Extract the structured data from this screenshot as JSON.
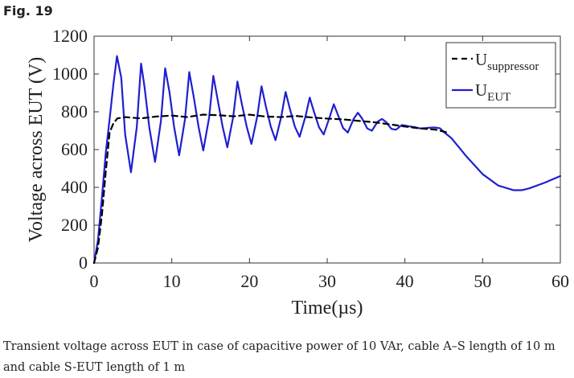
{
  "figure_label": "Fig. 19",
  "caption_line1": "Transient voltage across EUT in case of capacitive power of 10 VAr, cable A–S length of 10 m",
  "caption_line2": "and cable S-EUT length of 1 m",
  "chart_data": {
    "type": "line",
    "xlabel": "Time(µs)",
    "ylabel": "Voltage across EUT (V)",
    "xlim": [
      0,
      60
    ],
    "ylim": [
      0,
      1200
    ],
    "xticks": [
      0,
      10,
      20,
      30,
      40,
      50,
      60
    ],
    "yticks": [
      0,
      200,
      400,
      600,
      800,
      1000,
      1200
    ],
    "grid": false,
    "legend_position": "top-right",
    "series": [
      {
        "name": "U_suppressor",
        "legend_main": "U",
        "legend_sub": "suppressor",
        "style": "dashed",
        "color": "#000000",
        "x": [
          0,
          0.5,
          1,
          1.5,
          2,
          2.5,
          3,
          4,
          6,
          8,
          10,
          12,
          14,
          16,
          18,
          20,
          22,
          24,
          26,
          28,
          30,
          32,
          34,
          36,
          38,
          40,
          42,
          44,
          45.5
        ],
        "y": [
          0,
          80,
          250,
          480,
          690,
          740,
          765,
          772,
          765,
          775,
          780,
          772,
          785,
          782,
          776,
          785,
          775,
          772,
          778,
          770,
          764,
          760,
          752,
          745,
          734,
          722,
          712,
          705,
          690
        ]
      },
      {
        "name": "U_EUT",
        "legend_main": "U",
        "legend_sub": "EUT",
        "style": "solid",
        "color": "#1f1fcf",
        "x": [
          0,
          0.5,
          1,
          1.5,
          2,
          2.5,
          2.95,
          3.5,
          4.0,
          4.75,
          5.5,
          6.05,
          6.5,
          7.1,
          7.85,
          8.6,
          9.15,
          9.7,
          10.3,
          10.95,
          11.7,
          12.25,
          12.8,
          13.45,
          14.05,
          14.8,
          15.35,
          15.9,
          16.55,
          17.15,
          17.9,
          18.45,
          19.0,
          19.65,
          20.25,
          21.0,
          21.55,
          22.1,
          22.75,
          23.35,
          24.1,
          24.65,
          25.2,
          25.85,
          26.45,
          27.2,
          27.75,
          28.3,
          28.95,
          29.55,
          30.3,
          30.85,
          31.4,
          32.05,
          32.65,
          33.4,
          33.95,
          34.5,
          35.15,
          35.75,
          36.5,
          37.05,
          37.6,
          38.25,
          38.85,
          39.6,
          40.15,
          40.7,
          41.35,
          41.95,
          42.7,
          43.25,
          43.8,
          44.5,
          45.1,
          46,
          48,
          50,
          52,
          54,
          55,
          56,
          58,
          60
        ],
        "y": [
          0,
          120,
          340,
          580,
          760,
          950,
          1095,
          980,
          680,
          480,
          720,
          1055,
          930,
          720,
          535,
          750,
          1030,
          905,
          720,
          570,
          760,
          1010,
          885,
          720,
          595,
          768,
          990,
          865,
          720,
          612,
          772,
          960,
          845,
          720,
          630,
          775,
          935,
          830,
          720,
          650,
          776,
          905,
          815,
          720,
          668,
          774,
          875,
          800,
          718,
          680,
          770,
          840,
          782,
          714,
          690,
          762,
          795,
          764,
          712,
          700,
          748,
          762,
          745,
          710,
          705,
          730,
          726,
          722,
          718,
          712,
          714,
          716,
          717,
          713,
          690,
          660,
          560,
          470,
          410,
          385,
          385,
          395,
          425,
          460
        ]
      }
    ]
  }
}
